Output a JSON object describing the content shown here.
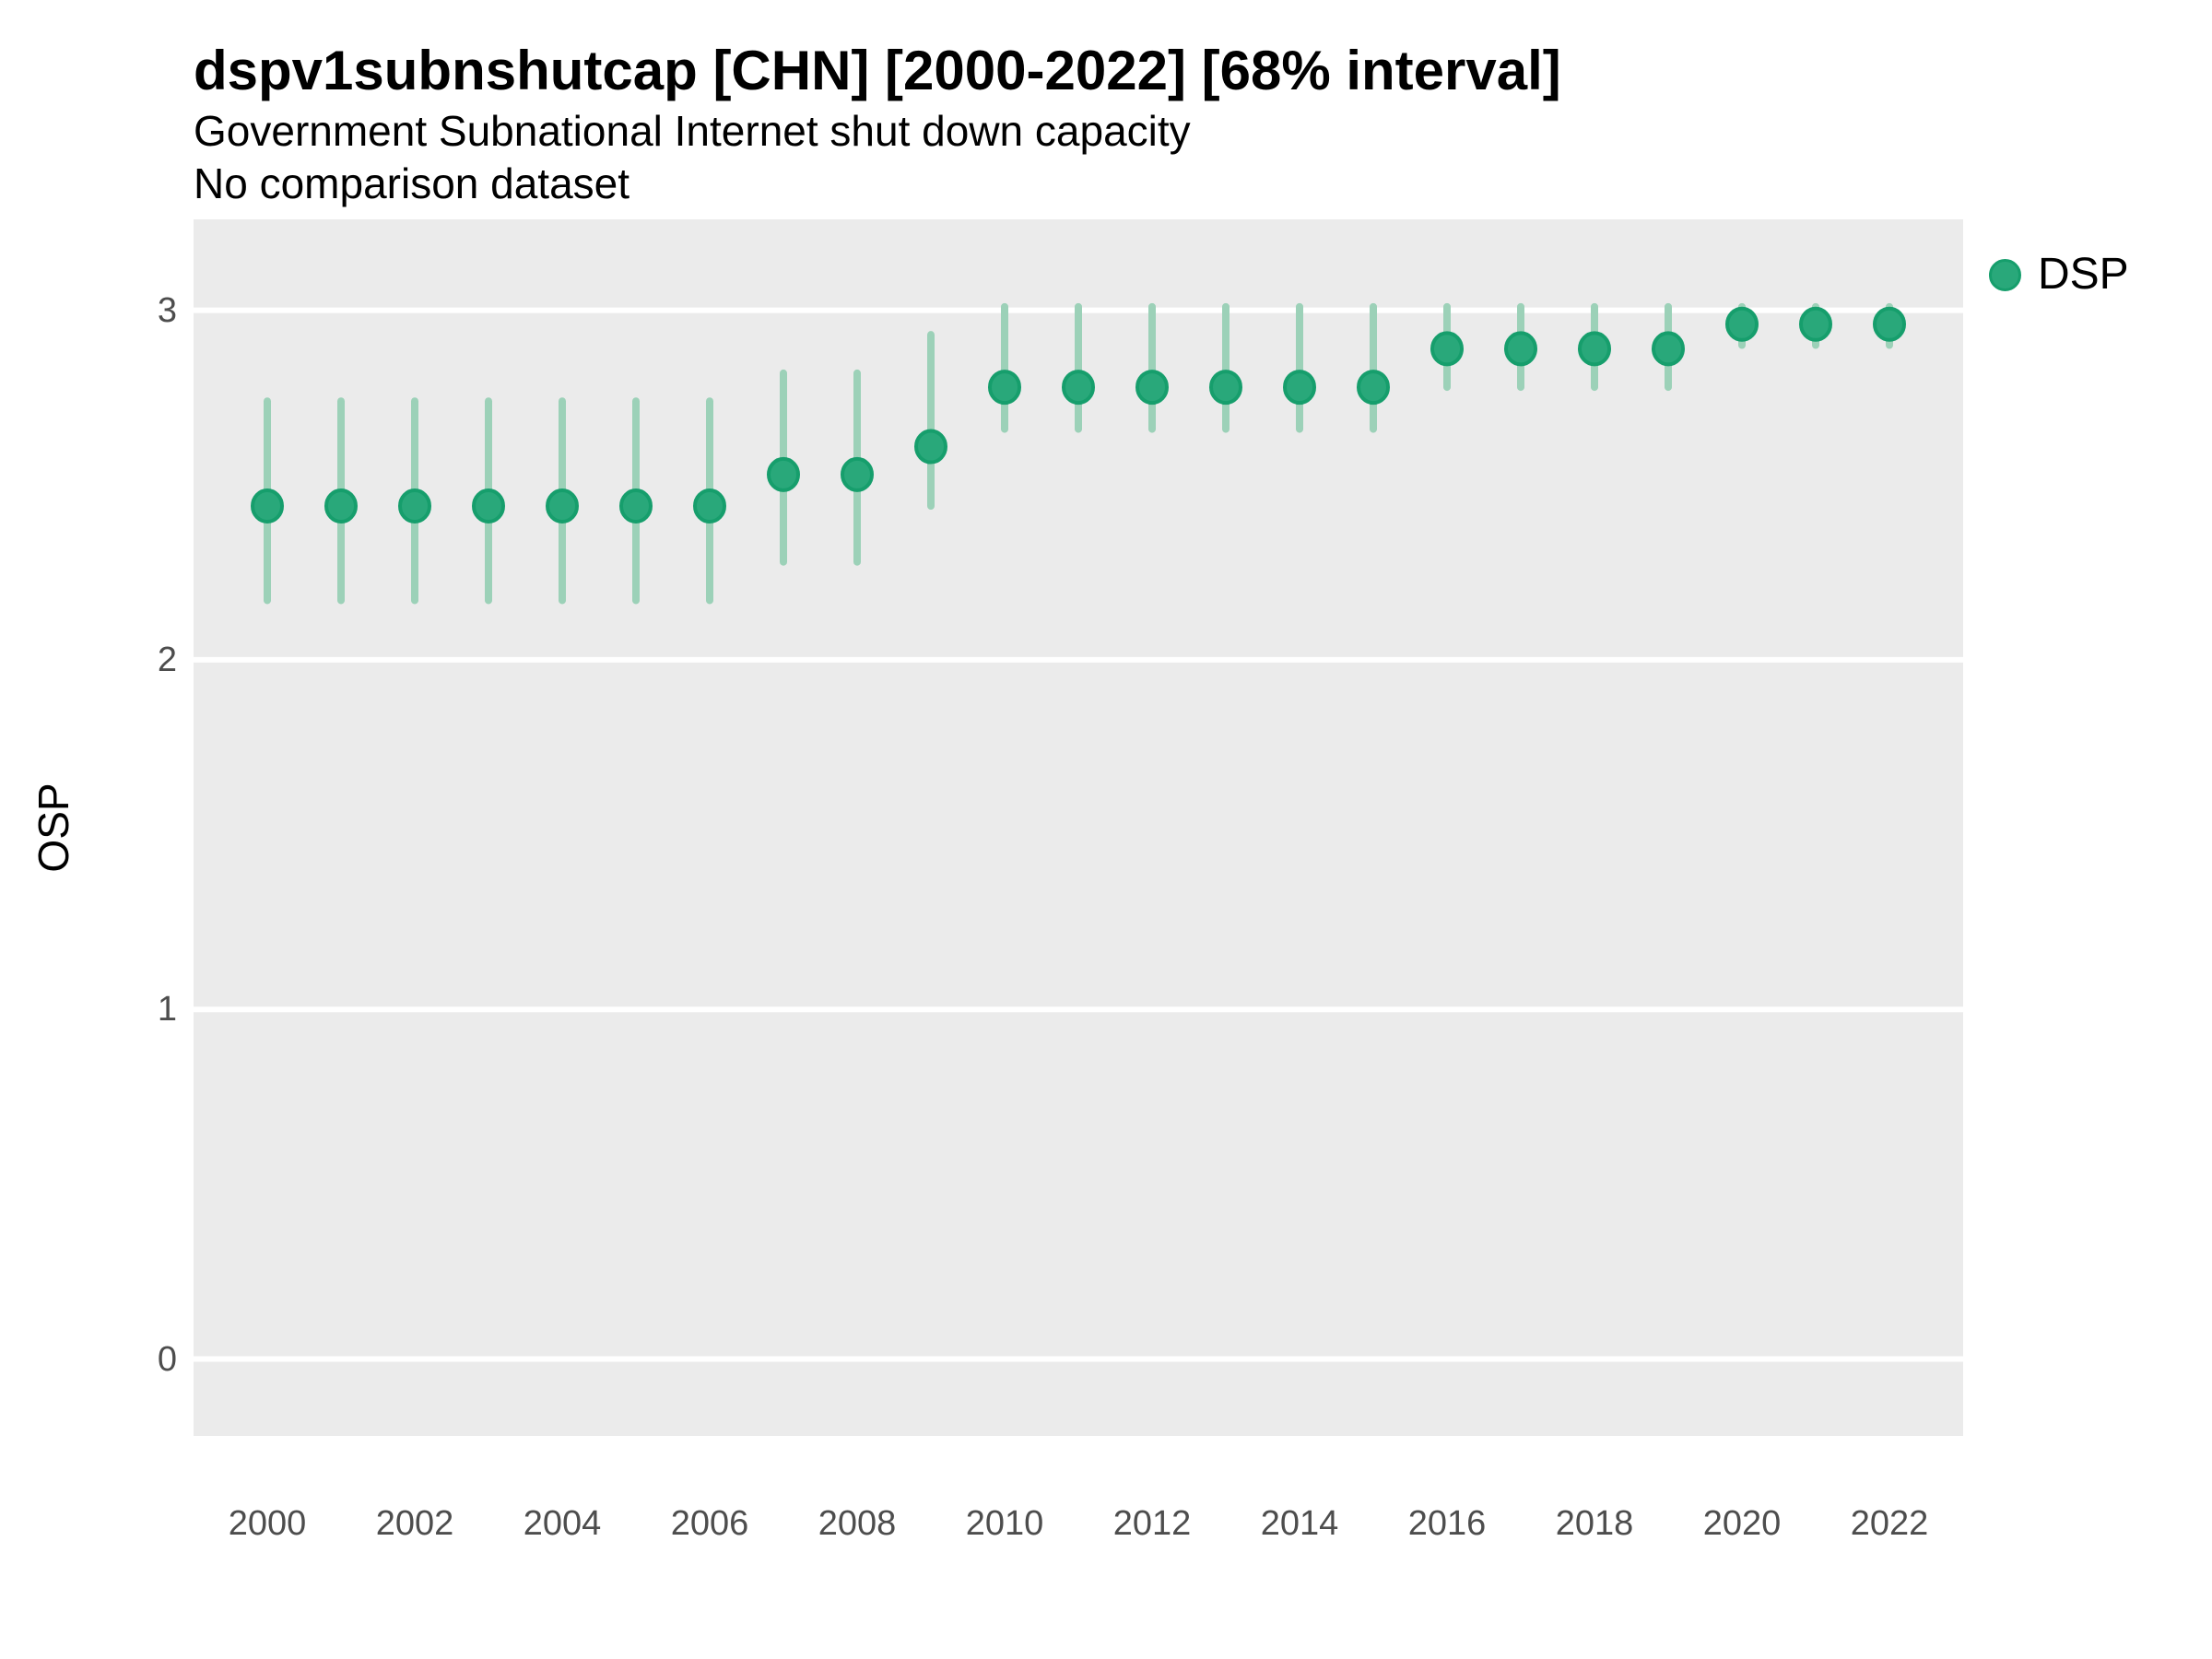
{
  "header": {
    "title": "dspv1subnshutcap [CHN] [2000-2022] [68% interval]",
    "subtitle": "Government Subnational Internet shut down capacity",
    "note": "No comparison dataset"
  },
  "axes": {
    "y_label": "OSP",
    "y_ticks": [
      {
        "label": "3",
        "value": 3
      },
      {
        "label": "2",
        "value": 2
      },
      {
        "label": "1",
        "value": 1
      },
      {
        "label": "0",
        "value": 0
      }
    ],
    "x_ticks": [
      {
        "label": "2000",
        "value": 2000
      },
      {
        "label": "2002",
        "value": 2002
      },
      {
        "label": "2004",
        "value": 2004
      },
      {
        "label": "2006",
        "value": 2006
      },
      {
        "label": "2008",
        "value": 2008
      },
      {
        "label": "2010",
        "value": 2010
      },
      {
        "label": "2012",
        "value": 2012
      },
      {
        "label": "2014",
        "value": 2014
      },
      {
        "label": "2016",
        "value": 2016
      },
      {
        "label": "2018",
        "value": 2018
      },
      {
        "label": "2020",
        "value": 2020
      },
      {
        "label": "2022",
        "value": 2022
      }
    ]
  },
  "legend": {
    "items": [
      {
        "label": "DSP",
        "marker": "circle-icon",
        "color": "#29A87A"
      }
    ]
  },
  "colors": {
    "point": "#29A87A",
    "point_border": "#169E6C",
    "interval": "#9CD1B8",
    "panel": "#EBEBEB",
    "gridline": "#FFFFFF",
    "tick_text": "#4D4D4D",
    "text": "#000000"
  },
  "chart_data": {
    "type": "scatter",
    "subtype": "point-interval",
    "title": "dspv1subnshutcap [CHN] [2000-2022] [68% interval]",
    "subtitle": "Government Subnational Internet shut down capacity",
    "note": "No comparison dataset",
    "interval_level": "68%",
    "xlabel": "",
    "ylabel": "OSP",
    "xlim": [
      1999,
      2023
    ],
    "ylim": [
      -0.22,
      3.26
    ],
    "grid": "horizontal-major-only",
    "legend_position": "right-top",
    "series": [
      {
        "name": "DSP",
        "x": [
          2000,
          2001,
          2002,
          2003,
          2004,
          2005,
          2006,
          2007,
          2008,
          2009,
          2010,
          2011,
          2012,
          2013,
          2014,
          2015,
          2016,
          2017,
          2018,
          2019,
          2020,
          2021,
          2022
        ],
        "y": [
          2.44,
          2.44,
          2.44,
          2.44,
          2.44,
          2.44,
          2.44,
          2.53,
          2.53,
          2.61,
          2.78,
          2.78,
          2.78,
          2.78,
          2.78,
          2.78,
          2.89,
          2.89,
          2.89,
          2.89,
          2.96,
          2.96,
          2.96
        ],
        "y_low": [
          2.17,
          2.17,
          2.17,
          2.17,
          2.17,
          2.17,
          2.17,
          2.28,
          2.28,
          2.44,
          2.66,
          2.66,
          2.66,
          2.66,
          2.66,
          2.66,
          2.78,
          2.78,
          2.78,
          2.78,
          2.9,
          2.9,
          2.9
        ],
        "y_high": [
          2.74,
          2.74,
          2.74,
          2.74,
          2.74,
          2.74,
          2.74,
          2.82,
          2.82,
          2.93,
          3.01,
          3.01,
          3.01,
          3.01,
          3.01,
          3.01,
          3.01,
          3.01,
          3.01,
          3.01,
          3.01,
          3.01,
          3.01
        ]
      }
    ]
  }
}
